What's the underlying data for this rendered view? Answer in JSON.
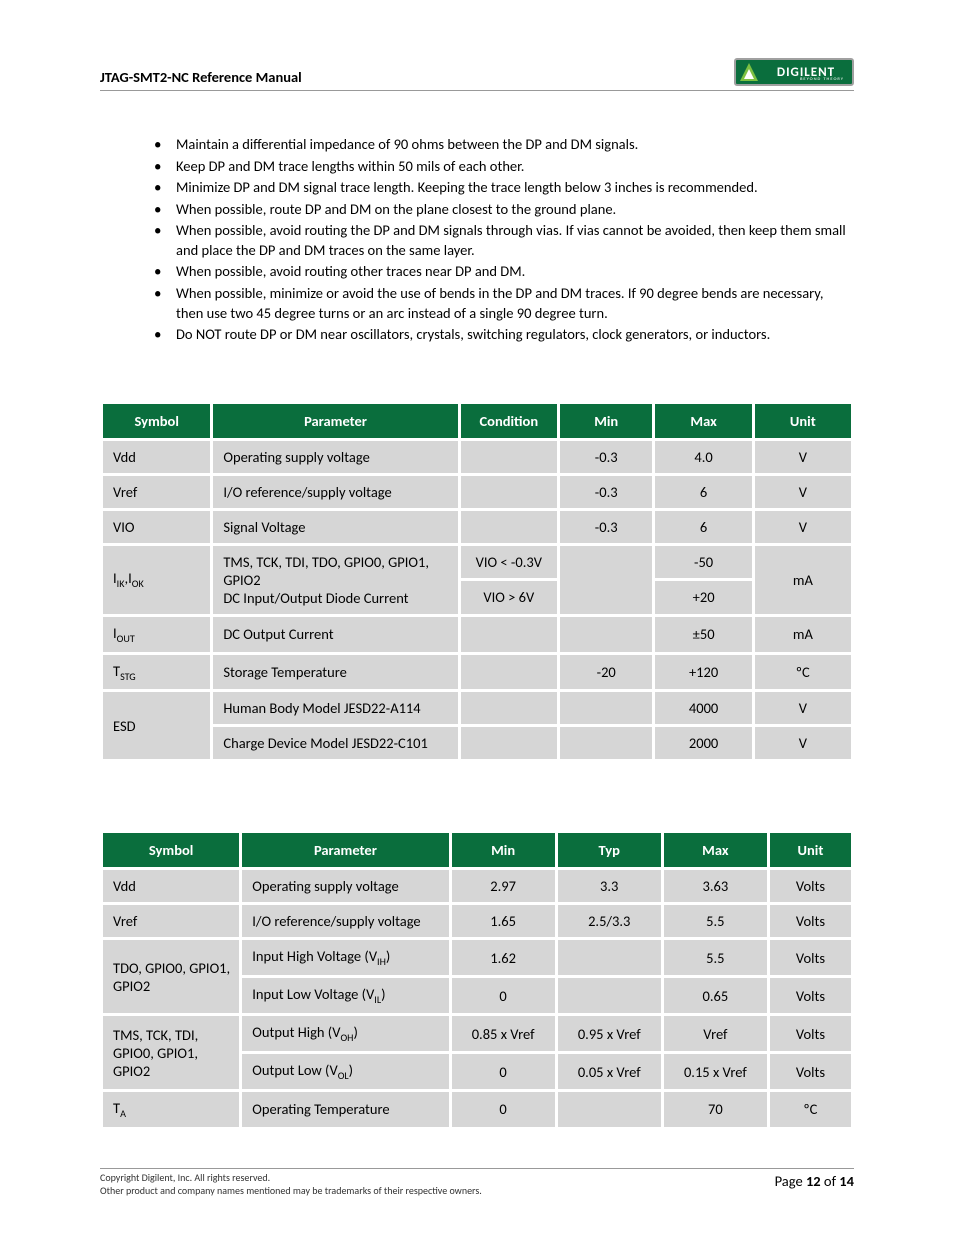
{
  "header": {
    "title": "JTAG-SMT2-NC Reference Manual",
    "logo_text": "DIGILENT",
    "logo_sub": "BEYOND THEORY"
  },
  "bullets": [
    "Maintain a differential impedance of 90 ohms between the DP and DM signals.",
    "Keep DP and DM trace lengths within 50 mils of each other.",
    "Minimize DP and DM signal trace length. Keeping the trace length below 3 inches is recommended.",
    "When possible, route DP and DM on the plane closest to the ground plane.",
    "When possible, avoid routing the DP and DM signals through vias. If vias cannot be avoided, then keep them small and place the DP and DM traces on the same layer.",
    "When possible, avoid routing other traces near DP and DM.",
    "When possible, minimize or avoid the use of bends in the DP and DM traces. If 90 degree bends are necessary, then use two 45 degree turns or an arc instead of a single 90 degree turn.",
    "Do NOT route DP or DM near oscillators, crystals, switching regulators, clock generators, or inductors."
  ],
  "table1": {
    "headers": [
      "Symbol",
      "Parameter",
      "Condition",
      "Min",
      "Max",
      "Unit"
    ],
    "col_widths": [
      "14%",
      "33%",
      "13%",
      "13%",
      "13%",
      "13%"
    ],
    "header_bg": "#0a6e3d",
    "cell_bg": "#d6d6d6",
    "rows": {
      "r0": {
        "sym": "Vdd",
        "param": "Operating supply voltage",
        "cond": "",
        "min": "-0.3",
        "max": "4.0",
        "unit": "V"
      },
      "r1": {
        "sym": "Vref",
        "param": "I/O reference/supply voltage",
        "cond": "",
        "min": "-0.3",
        "max": "6",
        "unit": "V"
      },
      "r2": {
        "sym": "VIO",
        "param": "Signal Voltage",
        "cond": "",
        "min": "-0.3",
        "max": "6",
        "unit": "V"
      },
      "r3": {
        "sym_html": "I<sub>IK</sub>,I<sub>OK</sub>",
        "param_html": "TMS, TCK, TDI, TDO, GPIO0, GPIO1, GPIO2<br>DC Input/Output Diode Current",
        "cond_a": "VIO < -0.3V",
        "cond_b": "VIO > 6V",
        "min": "",
        "max_a": "-50",
        "max_b": "+20",
        "unit": "mA"
      },
      "r4": {
        "sym_html": "I<sub>OUT</sub>",
        "param": "DC Output Current",
        "cond": "",
        "min": "",
        "max": "±50",
        "unit": "mA"
      },
      "r5": {
        "sym_html": "T<sub>STG</sub>",
        "param": "Storage Temperature",
        "cond": "",
        "min": "-20",
        "max": "+120",
        "unit": "ºC"
      },
      "r6": {
        "sym": "ESD",
        "param_a": "Human Body Model JESD22-A114",
        "param_b": "Charge Device Model JESD22-C101",
        "max_a": "4000",
        "max_b": "2000",
        "unit_a": "V",
        "unit_b": "V"
      }
    }
  },
  "table2": {
    "headers": [
      "Symbol",
      "Parameter",
      "Min",
      "Typ",
      "Max",
      "Unit"
    ],
    "col_widths": [
      "18%",
      "28%",
      "14%",
      "14%",
      "14%",
      "11%"
    ],
    "header_bg": "#0a6e3d",
    "cell_bg": "#d6d6d6",
    "rows": {
      "r0": {
        "sym": "Vdd",
        "param": "Operating supply voltage",
        "min": "2.97",
        "typ": "3.3",
        "max": "3.63",
        "unit": "Volts"
      },
      "r1": {
        "sym": "Vref",
        "param": "I/O reference/supply voltage",
        "min": "1.65",
        "typ": "2.5/3.3",
        "max": "5.5",
        "unit": "Volts"
      },
      "r2": {
        "sym": "TDO, GPIO0, GPIO1, GPIO2",
        "param_a_html": "Input High Voltage (V<sub>IH</sub>)",
        "param_b_html": "Input Low Voltage (V<sub>IL</sub>)",
        "min_a": "1.62",
        "min_b": "0",
        "typ_a": "",
        "typ_b": "",
        "max_a": "5.5",
        "max_b": "0.65",
        "unit_a": "Volts",
        "unit_b": "Volts"
      },
      "r3": {
        "sym": "TMS, TCK, TDI, GPIO0, GPIO1, GPIO2",
        "param_a_html": "Output High (V<sub>OH</sub>)",
        "param_b_html": "Output Low (V<sub>OL</sub>)",
        "min_a": "0.85 x Vref",
        "min_b": "0",
        "typ_a": "0.95 x Vref",
        "typ_b": "0.05 x Vref",
        "max_a": "Vref",
        "max_b": "0.15 x Vref",
        "unit_a": "Volts",
        "unit_b": "Volts"
      },
      "r4": {
        "sym_html": "T<sub>A</sub>",
        "param": "Operating Temperature",
        "min": "0",
        "typ": "",
        "max": "70",
        "unit": "ºC"
      }
    }
  },
  "footer": {
    "copyright": "Copyright Digilent, Inc. All rights reserved.",
    "trademarks": "Other product and company names mentioned may be trademarks of their respective owners.",
    "page_label": "Page ",
    "page_num": "12",
    "of": " of ",
    "total": "14"
  }
}
